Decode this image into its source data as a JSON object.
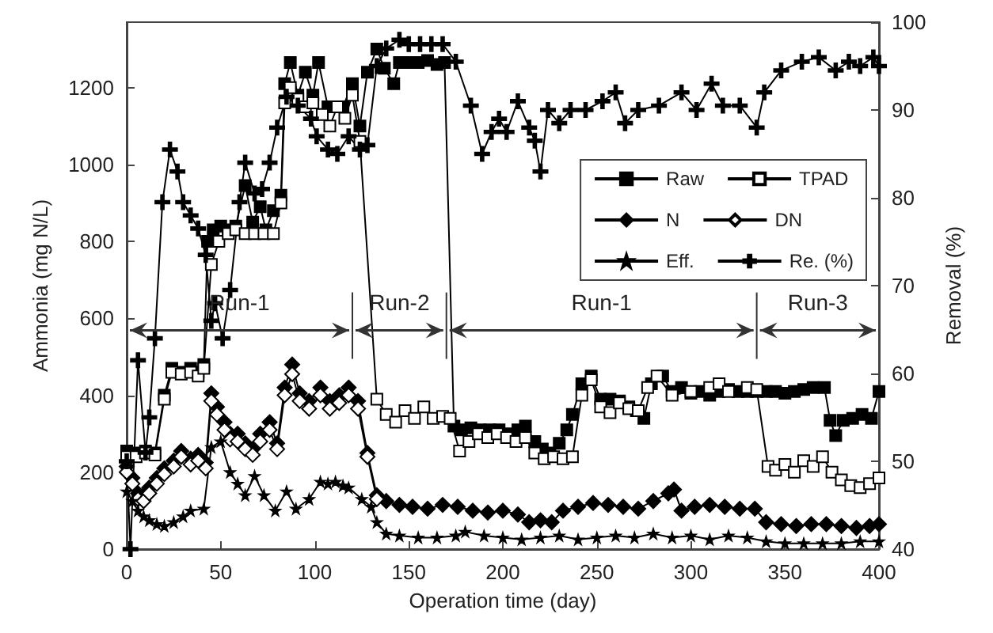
{
  "chart_data": {
    "type": "line",
    "xlabel": "Operation time (day)",
    "ylabel": "Ammonia (mg N/L)",
    "y2label": "Removal (%)",
    "xlim": [
      0,
      400
    ],
    "xticks": [
      0,
      50,
      100,
      150,
      200,
      250,
      300,
      350,
      400
    ],
    "ylim": [
      0,
      1370
    ],
    "yticks": [
      0,
      200,
      400,
      600,
      800,
      1000,
      1200
    ],
    "y2lim": [
      40,
      100
    ],
    "y2ticks": [
      40,
      50,
      60,
      70,
      80,
      90,
      100
    ],
    "grid": false,
    "legend": "right",
    "line_style": "solid",
    "ref_lines": [
      {
        "axis": "x",
        "value": 120,
        "label": null
      },
      {
        "axis": "x",
        "value": 170,
        "label": null
      },
      {
        "axis": "x",
        "value": 335,
        "label": null
      }
    ],
    "annotations": [
      "Run-1",
      "Run-2",
      "Run-1",
      "Run-3"
    ],
    "series": [
      {
        "name": "Raw",
        "color": "#000000",
        "marker": "square",
        "x": [
          0,
          5,
          10,
          15,
          20,
          24,
          29,
          34,
          38,
          41,
          43,
          46,
          50,
          54,
          58,
          63,
          67,
          71,
          74,
          78,
          82,
          84,
          87,
          91,
          95,
          99,
          102,
          107,
          111,
          115,
          120,
          124,
          128,
          133,
          137,
          142,
          145,
          150,
          155,
          160,
          165,
          169,
          174,
          178,
          183,
          188,
          193,
          198,
          203,
          208,
          212,
          217,
          221,
          225,
          230,
          234,
          237,
          242,
          247,
          252,
          257,
          262,
          267,
          271,
          275,
          279,
          285,
          290,
          295,
          300,
          305,
          310,
          315,
          320,
          325,
          330,
          335,
          340,
          345,
          350,
          355,
          360,
          365,
          371,
          374,
          377,
          381,
          386,
          391,
          396,
          400
        ],
        "values": [
          255,
          250,
          255,
          250,
          400,
          470,
          460,
          470,
          460,
          480,
          800,
          830,
          840,
          830,
          840,
          945,
          850,
          890,
          830,
          880,
          920,
          1210,
          1265,
          1180,
          1240,
          1180,
          1265,
          1150,
          1150,
          1150,
          1210,
          1100,
          1240,
          1300,
          1250,
          1210,
          1265,
          1265,
          1265,
          1270,
          1260,
          1265,
          320,
          310,
          315,
          310,
          310,
          310,
          300,
          310,
          320,
          280,
          260,
          250,
          275,
          310,
          350,
          430,
          450,
          390,
          390,
          385,
          370,
          360,
          340,
          430,
          450,
          410,
          420,
          405,
          410,
          400,
          410,
          415,
          410,
          410,
          410,
          410,
          410,
          405,
          410,
          415,
          420,
          420,
          335,
          295,
          335,
          340,
          350,
          340,
          410
        ]
      },
      {
        "name": "TPAD",
        "color": "#ffffff",
        "marker": "square",
        "x": [
          0,
          5,
          10,
          15,
          20,
          24,
          29,
          34,
          38,
          41,
          45,
          49,
          54,
          58,
          63,
          68,
          73,
          78,
          82,
          84,
          87,
          91,
          95,
          99,
          104,
          108,
          112,
          116,
          120,
          124,
          133,
          138,
          143,
          148,
          153,
          158,
          163,
          168,
          172,
          177,
          182,
          187,
          192,
          197,
          202,
          207,
          212,
          217,
          222,
          227,
          232,
          237,
          242,
          247,
          252,
          257,
          262,
          267,
          272,
          277,
          282,
          290,
          300,
          310,
          315,
          320,
          330,
          335,
          341,
          345,
          350,
          355,
          360,
          365,
          370,
          375,
          380,
          385,
          390,
          395,
          400
        ],
        "values": [
          240,
          240,
          250,
          245,
          390,
          460,
          455,
          460,
          450,
          470,
          740,
          800,
          820,
          830,
          820,
          820,
          820,
          820,
          900,
          1160,
          1200,
          1170,
          1150,
          1160,
          1130,
          1100,
          1150,
          1120,
          1180,
          1060,
          390,
          350,
          330,
          360,
          340,
          370,
          340,
          345,
          340,
          255,
          280,
          300,
          290,
          300,
          290,
          280,
          290,
          250,
          235,
          240,
          235,
          240,
          400,
          440,
          370,
          355,
          380,
          365,
          360,
          420,
          450,
          400,
          410,
          420,
          430,
          410,
          420,
          415,
          215,
          205,
          220,
          200,
          230,
          215,
          240,
          200,
          180,
          165,
          160,
          170,
          185
        ]
      },
      {
        "name": "N",
        "color": "#000000",
        "marker": "diamond",
        "x": [
          0,
          3,
          6,
          9,
          12,
          16,
          20,
          25,
          29,
          34,
          38,
          42,
          45,
          48,
          52,
          55,
          59,
          63,
          67,
          71,
          76,
          80,
          84,
          88,
          92,
          97,
          103,
          108,
          113,
          118,
          123,
          128,
          133,
          138,
          145,
          152,
          160,
          168,
          176,
          184,
          192,
          200,
          208,
          214,
          220,
          226,
          232,
          240,
          248,
          256,
          264,
          272,
          280,
          288,
          291,
          295,
          302,
          310,
          318,
          326,
          334,
          340,
          348,
          356,
          364,
          372,
          380,
          388,
          395,
          400
        ],
        "values": [
          215,
          185,
          145,
          140,
          160,
          185,
          210,
          230,
          255,
          235,
          245,
          225,
          405,
          370,
          330,
          300,
          300,
          275,
          260,
          300,
          330,
          275,
          420,
          480,
          405,
          385,
          420,
          385,
          400,
          420,
          385,
          250,
          140,
          125,
          115,
          110,
          105,
          115,
          110,
          100,
          95,
          100,
          90,
          70,
          75,
          70,
          100,
          110,
          120,
          115,
          110,
          105,
          125,
          145,
          155,
          100,
          110,
          115,
          110,
          105,
          105,
          70,
          65,
          60,
          65,
          65,
          60,
          55,
          60,
          65
        ]
      },
      {
        "name": "DN",
        "color": "#ffffff",
        "marker": "diamond",
        "x": [
          0,
          3,
          6,
          9,
          12,
          16,
          20,
          25,
          29,
          34,
          38,
          42,
          45,
          48,
          52,
          55,
          59,
          63,
          67,
          71,
          76,
          80,
          84,
          88,
          92,
          97,
          103,
          108,
          113,
          118,
          123,
          128,
          133
        ],
        "values": [
          200,
          170,
          130,
          125,
          145,
          170,
          195,
          215,
          240,
          220,
          230,
          210,
          385,
          350,
          310,
          285,
          280,
          260,
          245,
          280,
          310,
          260,
          400,
          455,
          385,
          365,
          400,
          365,
          380,
          400,
          365,
          240,
          130
        ]
      },
      {
        "name": "Eff.",
        "color": "#000000",
        "marker": "star",
        "x": [
          0,
          3,
          6,
          9,
          12,
          16,
          20,
          25,
          30,
          34,
          41,
          45,
          50,
          55,
          59,
          63,
          68,
          73,
          79,
          85,
          90,
          97,
          103,
          107,
          111,
          115,
          118,
          125,
          130,
          133,
          138,
          145,
          155,
          165,
          175,
          180,
          190,
          200,
          210,
          220,
          230,
          240,
          250,
          260,
          270,
          280,
          290,
          300,
          310,
          320,
          330,
          340,
          350,
          360,
          370,
          380,
          390,
          400
        ],
        "values": [
          150,
          125,
          100,
          85,
          75,
          65,
          60,
          70,
          85,
          100,
          105,
          265,
          280,
          200,
          170,
          140,
          190,
          140,
          100,
          150,
          105,
          130,
          175,
          170,
          175,
          165,
          160,
          130,
          110,
          70,
          40,
          35,
          30,
          30,
          35,
          45,
          35,
          30,
          25,
          30,
          35,
          25,
          30,
          35,
          30,
          40,
          30,
          35,
          25,
          35,
          30,
          20,
          15,
          15,
          15,
          15,
          20,
          20
        ]
      },
      {
        "name": "Re. (%)",
        "color": "#000000",
        "marker": "cross",
        "axis": "y2",
        "x": [
          0,
          2,
          6,
          10,
          12,
          15,
          19,
          23,
          27,
          30,
          34,
          38,
          42,
          45,
          47,
          51,
          55,
          60,
          63,
          68,
          72,
          76,
          80,
          85,
          91,
          98,
          101,
          107,
          112,
          118,
          124,
          128,
          133,
          138,
          145,
          150,
          156,
          162,
          168,
          175,
          183,
          189,
          194,
          198,
          202,
          208,
          214,
          217,
          220,
          224,
          230,
          236,
          244,
          253,
          260,
          265,
          272,
          283,
          295,
          303,
          311,
          317,
          326,
          335,
          339,
          348,
          359,
          368,
          377,
          384,
          390,
          397,
          400
        ],
        "values": [
          50,
          40,
          61.5,
          51,
          55,
          64,
          79.5,
          85.5,
          83,
          79.5,
          78,
          76.5,
          73.5,
          66,
          68,
          64,
          69.5,
          79.5,
          84,
          80.5,
          81,
          84,
          88,
          91.5,
          90.5,
          89,
          87,
          85.5,
          85,
          87,
          85.5,
          86,
          95,
          97,
          98,
          97.5,
          97.5,
          97.5,
          97.5,
          95.5,
          90.5,
          85,
          87.5,
          89,
          87.5,
          91,
          88,
          86.5,
          83,
          90,
          88.5,
          90,
          90,
          91,
          92,
          88.5,
          90,
          90.5,
          92,
          90,
          93,
          90.5,
          90.5,
          88,
          92,
          94.5,
          95.5,
          96,
          94.5,
          95.5,
          95,
          96,
          95
        ]
      }
    ]
  }
}
